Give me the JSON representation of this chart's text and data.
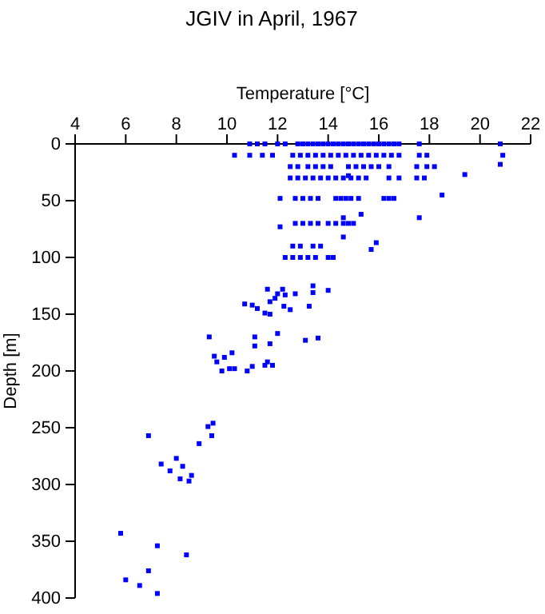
{
  "chart_data": {
    "type": "scatter",
    "title": "JGIV in April, 1967",
    "xlabel": "Temperature [°C]",
    "ylabel": "Depth [m]",
    "xlim": [
      4,
      22
    ],
    "xticks": [
      4,
      6,
      8,
      10,
      12,
      14,
      16,
      18,
      20,
      22
    ],
    "ylim": [
      400,
      0
    ],
    "yticks": [
      0,
      50,
      100,
      150,
      200,
      250,
      300,
      350,
      400
    ],
    "marker": "square",
    "grid": false,
    "series": [
      {
        "color": "#0000ff",
        "x": [
          10.9,
          11.2,
          11.5,
          12.0,
          12.3,
          12.8,
          13.0,
          13.2,
          13.4,
          13.6,
          13.8,
          14.0,
          14.2,
          14.4,
          14.6,
          14.8,
          15.0,
          15.2,
          15.4,
          15.6,
          15.8,
          16.0,
          16.2,
          16.4,
          16.6,
          16.8,
          17.6,
          20.8,
          10.3,
          10.9,
          11.4,
          11.8,
          12.6,
          12.9,
          13.2,
          13.5,
          13.8,
          14.1,
          14.4,
          14.7,
          15.0,
          15.3,
          15.6,
          15.9,
          16.2,
          16.5,
          16.8,
          17.6,
          17.9,
          20.9,
          12.5,
          12.8,
          13.2,
          13.5,
          13.8,
          14.1,
          14.8,
          15.1,
          15.4,
          15.7,
          16.0,
          16.4,
          17.5,
          17.9,
          18.2,
          20.8,
          12.5,
          12.8,
          13.1,
          13.4,
          13.7,
          14.0,
          14.3,
          14.6,
          14.9,
          15.2,
          15.5,
          16.4,
          16.8,
          17.5,
          17.8,
          14.8,
          19.4,
          12.1,
          12.7,
          13.0,
          13.3,
          13.6,
          14.3,
          14.5,
          14.7,
          14.9,
          15.2,
          16.2,
          16.4,
          16.6,
          18.5,
          14.6,
          15.3,
          17.6,
          12.1,
          12.7,
          13.0,
          13.3,
          13.6,
          14.0,
          14.3,
          14.6,
          14.8,
          15.0,
          14.6,
          15.9,
          12.6,
          12.9,
          13.4,
          13.7,
          15.7,
          12.3,
          12.6,
          12.9,
          13.2,
          13.5,
          14.0,
          14.2,
          11.6,
          12.2,
          13.4,
          14.0,
          12.0,
          12.3,
          12.7,
          13.4,
          10.7,
          11.0,
          11.2,
          11.7,
          11.9,
          11.5,
          11.7,
          12.25,
          12.5,
          13.25,
          9.3,
          11.1,
          12.0,
          11.7,
          11.1,
          13.1,
          13.6,
          9.5,
          9.9,
          10.2,
          9.6,
          9.8,
          10.1,
          10.3,
          10.8,
          11.0,
          11.6,
          11.5,
          11.8,
          9.45,
          9.25,
          6.9,
          9.4,
          8.9,
          8.0,
          7.4,
          8.25,
          7.75,
          8.15,
          8.5,
          8.6,
          5.8,
          7.25,
          8.4,
          6.9,
          6.0,
          6.55,
          7.25
        ],
        "values": [
          0,
          0,
          0,
          0,
          0,
          0,
          0,
          0,
          0,
          0,
          0,
          0,
          0,
          0,
          0,
          0,
          0,
          0,
          0,
          0,
          0,
          0,
          0,
          0,
          0,
          0,
          0,
          0,
          10,
          10,
          10,
          10,
          10,
          10,
          10,
          10,
          10,
          10,
          10,
          10,
          10,
          10,
          10,
          10,
          10,
          10,
          10,
          10,
          10,
          10,
          20,
          20,
          20,
          20,
          20,
          20,
          20,
          20,
          20,
          20,
          20,
          20,
          20,
          20,
          20,
          18,
          30,
          30,
          30,
          30,
          30,
          30,
          30,
          30,
          30,
          30,
          30,
          30,
          30,
          30,
          30,
          28,
          27,
          48,
          48,
          48,
          48,
          48,
          48,
          48,
          48,
          48,
          48,
          48,
          48,
          48,
          45,
          65,
          62,
          65,
          73,
          70,
          70,
          70,
          70,
          70,
          70,
          70,
          70,
          70,
          82,
          87,
          90,
          90,
          90,
          90,
          93,
          100,
          100,
          100,
          100,
          100,
          100,
          100,
          128,
          128,
          125,
          129,
          132,
          133,
          132,
          131,
          141,
          142,
          145,
          139,
          136,
          149,
          150,
          143,
          146,
          143,
          170,
          170,
          167,
          176,
          178,
          173,
          171,
          187,
          188,
          184,
          192,
          200,
          198,
          198,
          200,
          196,
          192,
          195,
          195,
          246,
          249,
          257,
          257,
          264,
          277,
          282,
          284,
          288,
          295,
          297,
          292,
          343,
          354,
          362,
          376,
          384,
          389,
          396
        ]
      }
    ]
  }
}
